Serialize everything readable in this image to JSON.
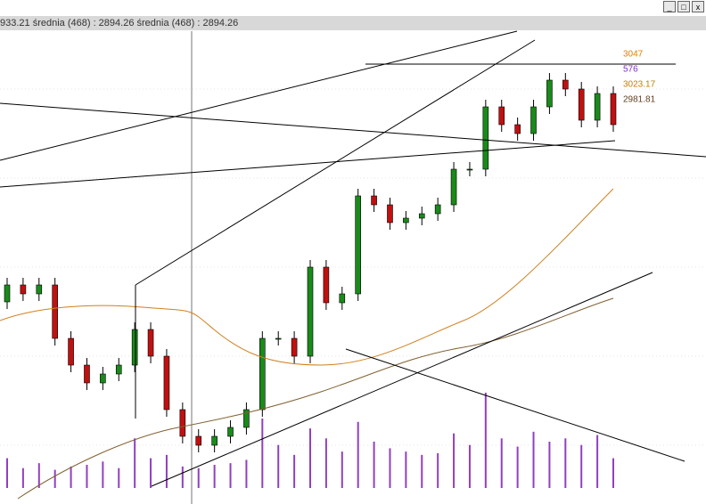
{
  "header": {
    "text": "933.21 średnia (468) : 2894.26 średnia (468) : 2894.26"
  },
  "chart_data": {
    "type": "candlestick",
    "ylim": [
      2553,
      3099
    ],
    "candles": [
      [
        2780,
        2807,
        2772,
        2799
      ],
      [
        2799,
        2807,
        2781,
        2789
      ],
      [
        2789,
        2807,
        2781,
        2799
      ],
      [
        2799,
        2807,
        2731,
        2739
      ],
      [
        2739,
        2747,
        2701,
        2709
      ],
      [
        2709,
        2717,
        2681,
        2689
      ],
      [
        2689,
        2707,
        2681,
        2699
      ],
      [
        2699,
        2717,
        2691,
        2709
      ],
      [
        2709,
        2757,
        2701,
        2749
      ],
      [
        2749,
        2757,
        2711,
        2719
      ],
      [
        2719,
        2727,
        2651,
        2659
      ],
      [
        2659,
        2667,
        2621,
        2629
      ],
      [
        2629,
        2637,
        2611,
        2619
      ],
      [
        2619,
        2637,
        2611,
        2629
      ],
      [
        2629,
        2647,
        2621,
        2639
      ],
      [
        2639,
        2667,
        2631,
        2659
      ],
      [
        2659,
        2747,
        2651,
        2739
      ],
      [
        2739,
        2747,
        2731,
        2739
      ],
      [
        2739,
        2747,
        2711,
        2719
      ],
      [
        2719,
        2827,
        2711,
        2819
      ],
      [
        2819,
        2827,
        2771,
        2779
      ],
      [
        2779,
        2797,
        2771,
        2789
      ],
      [
        2789,
        2907,
        2781,
        2899
      ],
      [
        2899,
        2907,
        2881,
        2889
      ],
      [
        2889,
        2897,
        2861,
        2869
      ],
      [
        2869,
        2882,
        2861,
        2874
      ],
      [
        2874,
        2887,
        2866,
        2879
      ],
      [
        2879,
        2897,
        2871,
        2889
      ],
      [
        2889,
        2937,
        2881,
        2929
      ],
      [
        2929,
        2937,
        2921,
        2929
      ],
      [
        2929,
        3007,
        2921,
        2999
      ],
      [
        2999,
        3007,
        2971,
        2979
      ],
      [
        2979,
        2987,
        2961,
        2969
      ],
      [
        2969,
        3007,
        2961,
        2999
      ],
      [
        2999,
        3037,
        2991,
        3029
      ],
      [
        3029,
        3037,
        3011,
        3019
      ],
      [
        3019,
        3027,
        2976,
        2984
      ],
      [
        2984,
        3022,
        2976,
        3014
      ],
      [
        3014,
        3022,
        2971,
        2979
      ]
    ],
    "volume": [
      180,
      120,
      150,
      110,
      130,
      140,
      160,
      120,
      300,
      180,
      200,
      130,
      120,
      140,
      150,
      170,
      420,
      260,
      200,
      360,
      300,
      220,
      400,
      280,
      240,
      220,
      200,
      210,
      330,
      260,
      576,
      300,
      250,
      340,
      280,
      300,
      260,
      320,
      180
    ],
    "volume_lim": [
      0,
      700
    ],
    "labels": [
      {
        "text": "3047",
        "color": "#e08000"
      },
      {
        "text": "576",
        "color": "#8030c0"
      },
      {
        "text": "3023.17",
        "color": "#c08000"
      },
      {
        "text": "2981.81",
        "color": "#604020"
      }
    ]
  }
}
